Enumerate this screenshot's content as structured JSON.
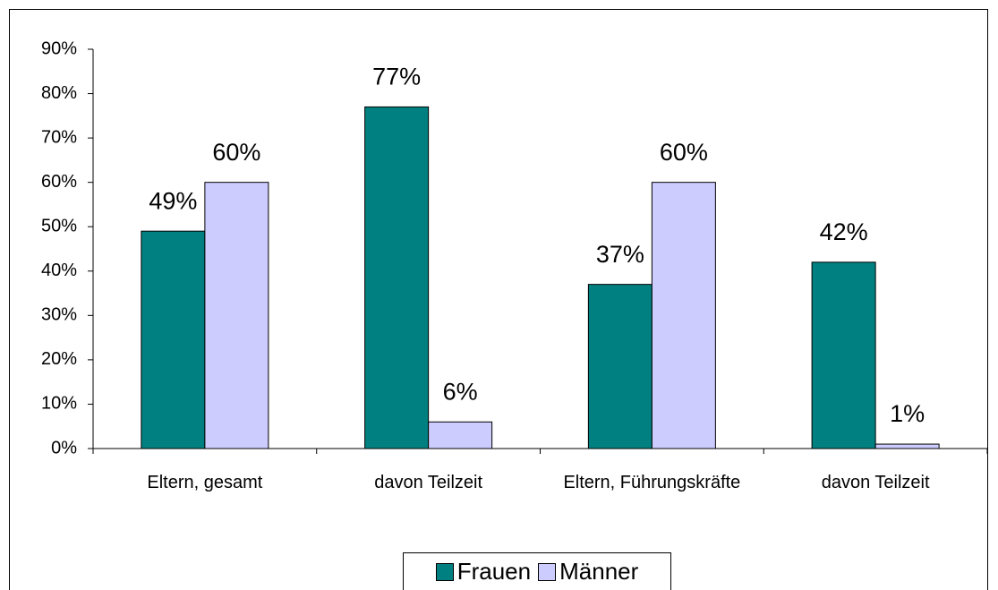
{
  "chart_data": {
    "type": "bar",
    "categories": [
      "Eltern, gesamt",
      "davon Teilzeit",
      "Eltern, Führungskräfte",
      "davon Teilzeit"
    ],
    "series": [
      {
        "name": "Frauen",
        "color": "#008080",
        "values": [
          49,
          77,
          37,
          42
        ],
        "value_labels": [
          "49%",
          "77%",
          "37%",
          "42%"
        ]
      },
      {
        "name": "Männer",
        "color": "#ccccff",
        "values": [
          60,
          6,
          60,
          1
        ],
        "value_labels": [
          "60%",
          "6%",
          "60%",
          "1%"
        ]
      }
    ],
    "ylim": [
      0,
      90
    ],
    "yticks": [
      {
        "value": 0,
        "label": "0%"
      },
      {
        "value": 10,
        "label": "10%"
      },
      {
        "value": 20,
        "label": "20%"
      },
      {
        "value": 30,
        "label": "30%"
      },
      {
        "value": 40,
        "label": "40%"
      },
      {
        "value": 50,
        "label": "50%"
      },
      {
        "value": 60,
        "label": "60%"
      },
      {
        "value": 70,
        "label": "70%"
      },
      {
        "value": 80,
        "label": "80%"
      },
      {
        "value": 90,
        "label": "90%"
      }
    ],
    "legend": "bottom"
  }
}
